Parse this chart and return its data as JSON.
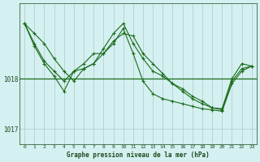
{
  "title": "Graphe pression niveau de la mer (hPa)",
  "background_color": "#d4f0f0",
  "line_color": "#1a6b1a",
  "grid_color": "#b0c8c8",
  "axis_label_color": "#1a4a1a",
  "x_ticks": [
    0,
    1,
    2,
    3,
    4,
    5,
    6,
    7,
    8,
    9,
    10,
    11,
    12,
    13,
    14,
    15,
    16,
    17,
    18,
    19,
    20,
    21,
    22,
    23
  ],
  "ylim": [
    1016.7,
    1019.5
  ],
  "yticks": [
    1017,
    1018
  ],
  "series1": [
    1019.1,
    1018.9,
    1018.7,
    1018.4,
    1018.15,
    1017.95,
    1018.2,
    1018.3,
    1018.5,
    1018.75,
    1018.9,
    1018.85,
    1018.5,
    1018.3,
    1018.1,
    1017.9,
    1017.75,
    1017.6,
    1017.5,
    1017.42,
    1017.4,
    1018.0,
    1018.3,
    1018.25
  ],
  "series2": [
    1019.1,
    1018.7,
    1018.35,
    1018.15,
    1017.95,
    1018.15,
    1018.2,
    1018.3,
    1018.6,
    1018.9,
    1019.1,
    1018.7,
    1018.4,
    1018.15,
    1018.05,
    1017.9,
    1017.8,
    1017.65,
    1017.55,
    1017.42,
    1017.38,
    1017.95,
    1018.2,
    1018.25
  ],
  "series3": [
    1019.1,
    1018.65,
    1018.3,
    1018.05,
    1017.75,
    1018.15,
    1018.3,
    1018.5,
    1018.5,
    1018.7,
    1019.0,
    1018.5,
    1017.95,
    1017.7,
    1017.6,
    1017.55,
    1017.5,
    1017.45,
    1017.4,
    1017.38,
    1017.35,
    1017.9,
    1018.15,
    1018.25
  ],
  "hline_y": 1018.0
}
